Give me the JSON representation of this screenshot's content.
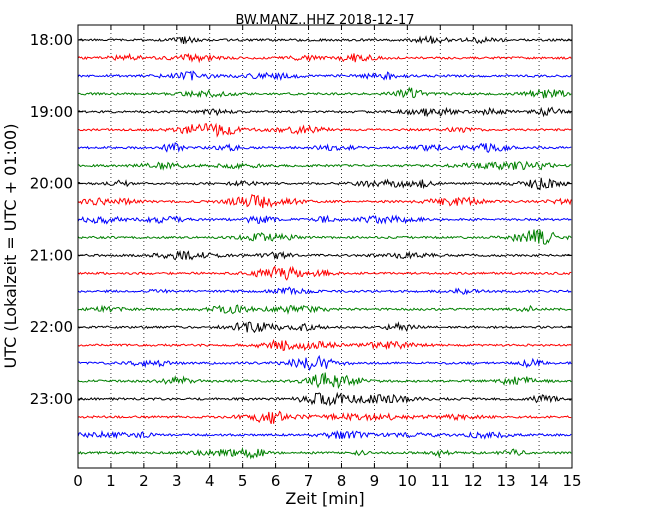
{
  "chart_data": {
    "type": "line",
    "title": "BW.MANZ..HHZ 2018-12-17",
    "xlabel": "Zeit  [min]",
    "ylabel": "UTC (Lokalzeit = UTC + 01:00)",
    "xlim": [
      0,
      15
    ],
    "x_ticks": [
      0,
      1,
      2,
      3,
      4,
      5,
      6,
      7,
      8,
      9,
      10,
      11,
      12,
      13,
      14,
      15
    ],
    "x_tick_labels": [
      "0",
      "1",
      "2",
      "3",
      "4",
      "5",
      "6",
      "7",
      "8",
      "9",
      "10",
      "11",
      "12",
      "13",
      "14",
      "15"
    ],
    "y_tick_labels": [
      "18:00",
      "19:00",
      "20:00",
      "21:00",
      "22:00",
      "23:00"
    ],
    "row_count": 24,
    "rows_per_hour": 4,
    "minutes_per_row": 15,
    "grid": "vertical dotted lines at each minute",
    "colors": [
      "#000000",
      "#ff0000",
      "#0000ff",
      "#008000"
    ],
    "series": [
      {
        "start": "18:00",
        "color": "#000000"
      },
      {
        "start": "18:15",
        "color": "#ff0000"
      },
      {
        "start": "18:30",
        "color": "#0000ff"
      },
      {
        "start": "18:45",
        "color": "#008000"
      },
      {
        "start": "19:00",
        "color": "#000000"
      },
      {
        "start": "19:15",
        "color": "#ff0000"
      },
      {
        "start": "19:30",
        "color": "#0000ff"
      },
      {
        "start": "19:45",
        "color": "#008000"
      },
      {
        "start": "20:00",
        "color": "#000000"
      },
      {
        "start": "20:15",
        "color": "#ff0000"
      },
      {
        "start": "20:30",
        "color": "#0000ff"
      },
      {
        "start": "20:45",
        "color": "#008000"
      },
      {
        "start": "21:00",
        "color": "#000000"
      },
      {
        "start": "21:15",
        "color": "#ff0000"
      },
      {
        "start": "21:30",
        "color": "#0000ff"
      },
      {
        "start": "21:45",
        "color": "#008000"
      },
      {
        "start": "22:00",
        "color": "#000000"
      },
      {
        "start": "22:15",
        "color": "#ff0000"
      },
      {
        "start": "22:30",
        "color": "#0000ff"
      },
      {
        "start": "22:45",
        "color": "#008000"
      },
      {
        "start": "23:00",
        "color": "#000000"
      },
      {
        "start": "23:15",
        "color": "#ff0000"
      },
      {
        "start": "23:30",
        "color": "#0000ff"
      },
      {
        "start": "23:45",
        "color": "#008000"
      }
    ]
  }
}
